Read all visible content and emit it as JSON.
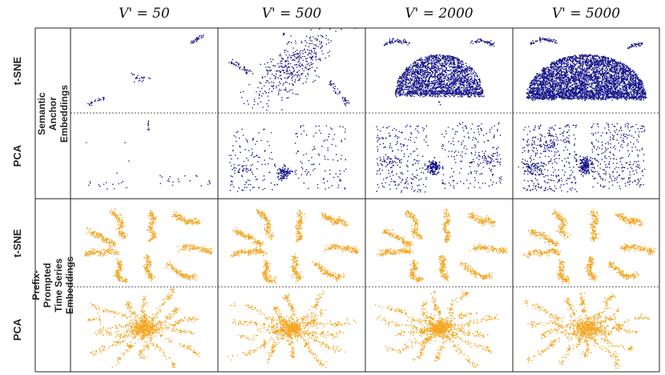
{
  "columns": [
    "V' = 50",
    "V' = 500",
    "V' = 2000",
    "V' = 5000"
  ],
  "row_labels": [
    "t-SNE",
    "PCA",
    "t-SNE",
    "PCA"
  ],
  "groups": [
    {
      "label": "Semantic Anchor Embeddings",
      "color": "#1a1a8c"
    },
    {
      "label_line1": "Prefix-Prompted Time Series",
      "label_line2": "Embeddings",
      "color": "#f5a623"
    }
  ]
}
